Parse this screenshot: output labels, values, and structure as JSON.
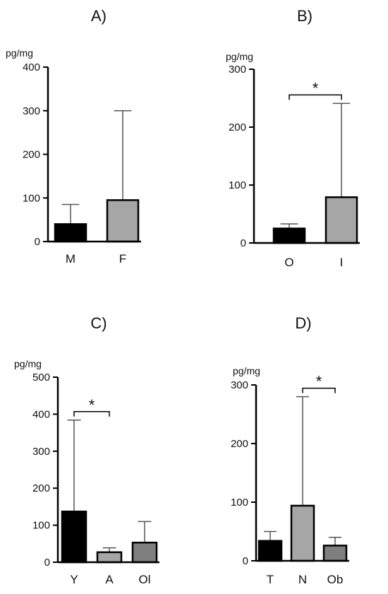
{
  "chart_data": [
    {
      "type": "bar",
      "title": "A)",
      "ylabel": "pg/mg",
      "ylim": [
        0,
        400
      ],
      "yticks": [
        0,
        100,
        200,
        300,
        400
      ],
      "categories": [
        "M",
        "F"
      ],
      "values": [
        40,
        95
      ],
      "error_upper": [
        85,
        300
      ],
      "colors": [
        "#000000",
        "#a6a6a6"
      ],
      "significance": []
    },
    {
      "type": "bar",
      "title": "B)",
      "ylabel": "pg/mg",
      "ylim": [
        0,
        300
      ],
      "yticks": [
        0,
        100,
        200,
        300
      ],
      "categories": [
        "O",
        "I"
      ],
      "values": [
        25,
        79
      ],
      "error_upper": [
        33,
        241
      ],
      "colors": [
        "#000000",
        "#a6a6a6"
      ],
      "significance": [
        {
          "from": 0,
          "to": 1,
          "label": "*"
        }
      ]
    },
    {
      "type": "bar",
      "title": "C)",
      "ylabel": "pg/mg",
      "ylim": [
        0,
        500
      ],
      "yticks": [
        0,
        100,
        200,
        300,
        400,
        500
      ],
      "categories": [
        "Y",
        "A",
        "Ol"
      ],
      "values": [
        137,
        27,
        53
      ],
      "error_upper": [
        384,
        39,
        110
      ],
      "colors": [
        "#000000",
        "#a6a6a6",
        "#7f7f7f"
      ],
      "significance": [
        {
          "from": 0,
          "to": 1,
          "label": "*"
        }
      ]
    },
    {
      "type": "bar",
      "title": "D)",
      "ylabel": "pg/mg",
      "ylim": [
        0,
        300
      ],
      "yticks": [
        0,
        100,
        200,
        300
      ],
      "categories": [
        "T",
        "N",
        "Ob"
      ],
      "values": [
        34,
        94,
        26
      ],
      "error_upper": [
        50,
        280,
        40
      ],
      "colors": [
        "#000000",
        "#a6a6a6",
        "#7f7f7f"
      ],
      "significance": [
        {
          "from": 1,
          "to": 2,
          "label": "*"
        }
      ]
    }
  ]
}
